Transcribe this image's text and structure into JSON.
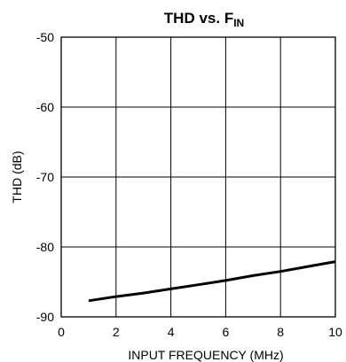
{
  "chart_data": {
    "type": "line",
    "title": "THD vs. F",
    "title_subscript": "IN",
    "xlabel": "INPUT FREQUENCY (MHz)",
    "ylabel": "THD (dB)",
    "xlim": [
      0,
      10
    ],
    "ylim": [
      -90,
      -50
    ],
    "xticks": [
      0,
      2,
      4,
      6,
      8,
      10
    ],
    "yticks": [
      -50,
      -60,
      -70,
      -80,
      -90
    ],
    "grid": true,
    "series": [
      {
        "x": [
          1,
          2,
          3,
          4,
          5,
          6,
          7,
          8,
          9,
          10
        ],
        "y": [
          -87.7,
          -87.1,
          -86.6,
          -86.0,
          -85.4,
          -84.8,
          -84.1,
          -83.5,
          -82.8,
          -82.1
        ]
      }
    ],
    "line_color": "#000000"
  }
}
